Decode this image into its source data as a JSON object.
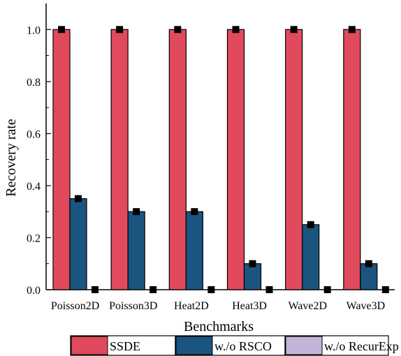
{
  "chart_data": {
    "type": "bar",
    "title": "",
    "xlabel": "Benchmarks",
    "ylabel": "Recovery rate",
    "ylim": [
      0,
      1.1
    ],
    "yticks": [
      "0.0",
      "0.2",
      "0.4",
      "0.6",
      "0.8",
      "1.0"
    ],
    "categories": [
      "Poisson2D",
      "Poisson3D",
      "Heat2D",
      "Heat3D",
      "Wave2D",
      "Wave3D"
    ],
    "series": [
      {
        "name": "SSDE",
        "color": "#e04a5c",
        "values": [
          1.0,
          1.0,
          1.0,
          1.0,
          1.0,
          1.0
        ]
      },
      {
        "name": "w./o RSCO",
        "color": "#1a5580",
        "values": [
          0.35,
          0.3,
          0.3,
          0.1,
          0.25,
          0.1
        ]
      },
      {
        "name": "w./o RecurExp",
        "color": "#c3b3d9",
        "values": [
          0.0,
          0.0,
          0.0,
          0.0,
          0.0,
          0.0
        ]
      }
    ],
    "markers": "black square at each bar top",
    "legend_position": "bottom",
    "grid": false
  }
}
